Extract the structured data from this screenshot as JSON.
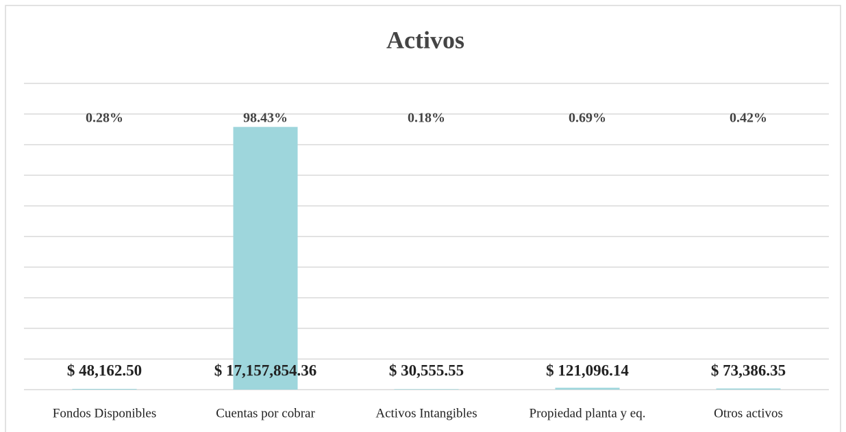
{
  "chart_data": {
    "type": "bar",
    "title": "Activos",
    "categories": [
      "Fondos Disponibles",
      "Cuentas por cobrar",
      "Activos Intangibles",
      "Propiedad planta y eq.",
      "Otros activos"
    ],
    "values": [
      48162.5,
      17157854.36,
      30555.55,
      121096.14,
      73386.35
    ],
    "value_labels": [
      "$ 48,162.50",
      "$ 17,157,854.36",
      "$ 30,555.55",
      "$ 121,096.14",
      "$ 73,386.35"
    ],
    "percentages": [
      0.28,
      98.43,
      0.18,
      0.69,
      0.42
    ],
    "percentage_labels": [
      "0.28%",
      "98.43%",
      "0.18%",
      "0.69%",
      "0.42%"
    ],
    "color": "#9ed6dc",
    "ylim": [
      0,
      20000000
    ],
    "yticks": [
      0,
      2000000,
      4000000,
      6000000,
      8000000,
      10000000,
      12000000,
      14000000,
      16000000,
      18000000,
      20000000
    ],
    "grid": true
  }
}
